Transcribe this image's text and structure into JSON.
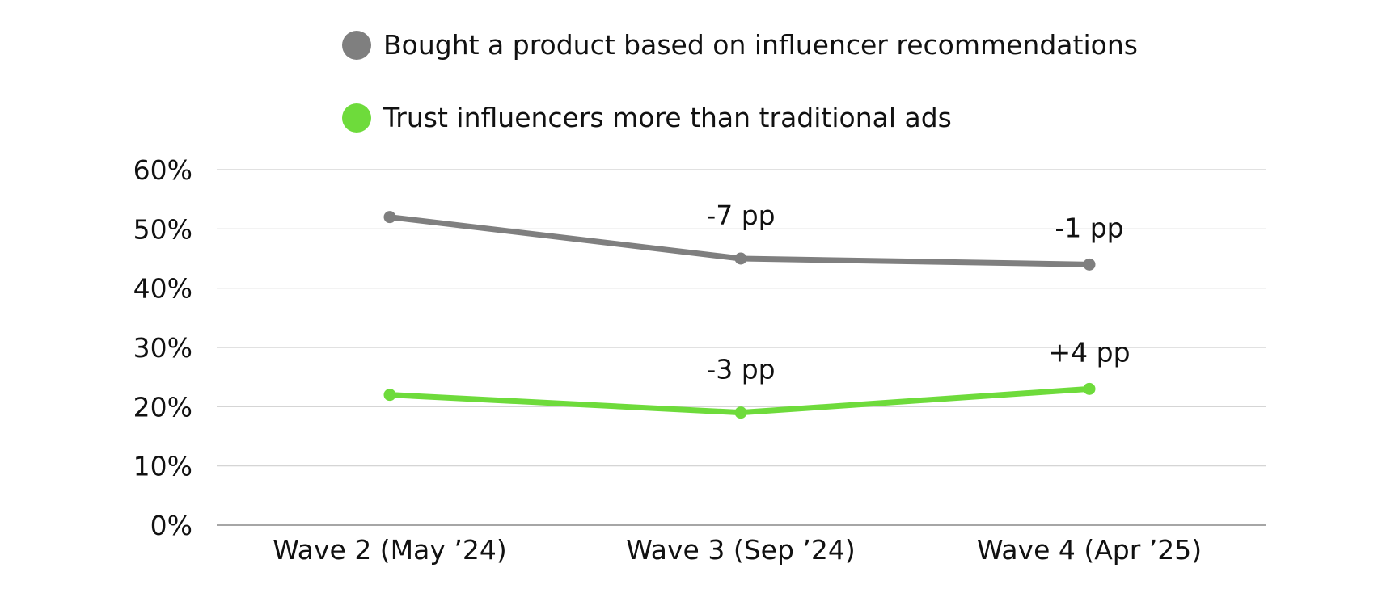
{
  "chart_data": {
    "type": "line",
    "categories": [
      "Wave 2 (May ’24)",
      "Wave 3 (Sep ’24)",
      "Wave 4 (Apr ’25)"
    ],
    "series": [
      {
        "name": "Bought a product based on influencer recommendations",
        "color": "#7f7f7f",
        "values": [
          52,
          45,
          44
        ],
        "annotations": [
          "",
          "-7 pp",
          "-1 pp"
        ]
      },
      {
        "name": "Trust influencers more than traditional ads",
        "color": "#6edb3b",
        "values": [
          22,
          19,
          23
        ],
        "annotations": [
          "",
          "-3 pp",
          "+4 pp"
        ]
      }
    ],
    "yticks": [
      "0%",
      "10%",
      "20%",
      "30%",
      "40%",
      "50%",
      "60%"
    ],
    "ylim": [
      0,
      60
    ],
    "grid": true,
    "legend": "top",
    "title": "",
    "xlabel": "",
    "ylabel": ""
  }
}
